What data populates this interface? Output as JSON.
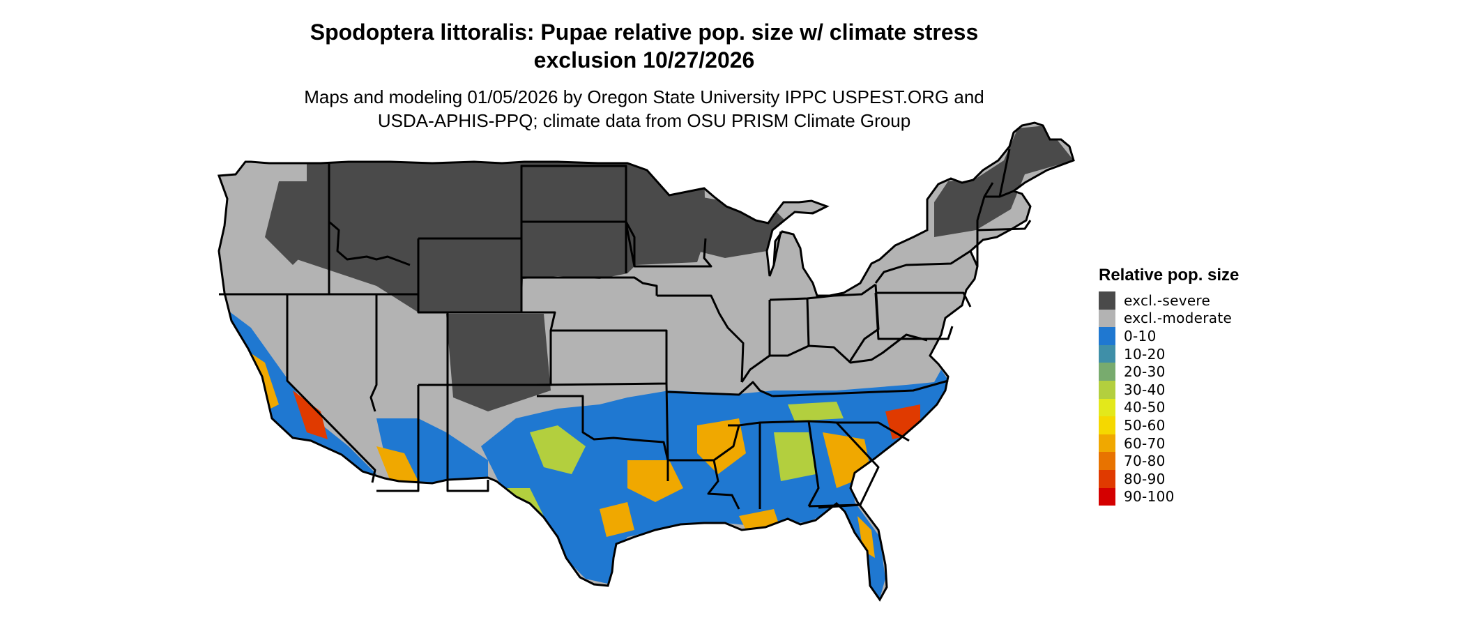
{
  "title": {
    "line1": "Spodoptera littoralis: Pupae relative pop. size w/ climate stress",
    "line2": "exclusion 10/27/2026"
  },
  "subtitle": {
    "line1": "Maps and modeling 01/05/2026 by Oregon State University IPPC USPEST.ORG and",
    "line2": "USDA-APHIS-PPQ; climate data from OSU PRISM Climate Group"
  },
  "legend": {
    "title": "Relative pop. size",
    "items": [
      {
        "label": "excl.-severe",
        "color": "#4a4a4a"
      },
      {
        "label": "excl.-moderate",
        "color": "#b3b3b3"
      },
      {
        "label": "0-10",
        "color": "#1f78d1"
      },
      {
        "label": "10-20",
        "color": "#3f8fa8"
      },
      {
        "label": "20-30",
        "color": "#78ab6e"
      },
      {
        "label": "30-40",
        "color": "#b3cf3e"
      },
      {
        "label": "40-50",
        "color": "#e3e81b"
      },
      {
        "label": "50-60",
        "color": "#f5d800"
      },
      {
        "label": "60-70",
        "color": "#f0a800"
      },
      {
        "label": "70-80",
        "color": "#e87300"
      },
      {
        "label": "80-90",
        "color": "#e03a00"
      },
      {
        "label": "90-100",
        "color": "#d40000"
      }
    ]
  },
  "map": {
    "region": "Contiguous United States",
    "palette": {
      "severe": "#4a4a4a",
      "moderate": "#b3b3b3",
      "low": "#1f78d1",
      "mid": "#b3cf3e",
      "high": "#f0a800",
      "peak": "#e03a00",
      "border": "#000000"
    }
  }
}
